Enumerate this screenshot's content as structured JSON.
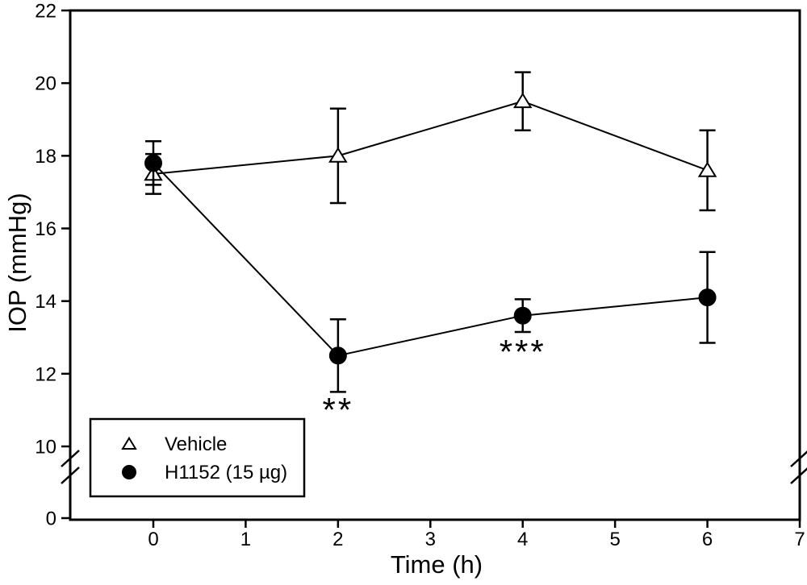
{
  "figure": {
    "background": "#ffffff",
    "ink_color": "#000000"
  },
  "chart_data": {
    "type": "line",
    "title": "",
    "xlabel": "Time (h)",
    "ylabel": "IOP (mmHg)",
    "x_ticks": [
      0,
      1,
      2,
      3,
      4,
      5,
      6,
      7
    ],
    "y_ticks": [
      0,
      10,
      12,
      14,
      16,
      18,
      20,
      22
    ],
    "xlim": [
      -0.9,
      7
    ],
    "ylim": [
      0,
      22
    ],
    "y_axis_break": {
      "between": [
        0,
        10
      ]
    },
    "grid": false,
    "x": [
      0,
      2,
      4,
      6
    ],
    "series": [
      {
        "name": "Vehicle",
        "marker": "open-triangle",
        "values": [
          17.5,
          18.0,
          19.5,
          17.6
        ],
        "error_bars": [
          0.55,
          1.3,
          0.8,
          1.1
        ]
      },
      {
        "name": "H1152 (15 µg)",
        "marker": "filled-circle",
        "values": [
          17.8,
          12.5,
          13.6,
          14.1
        ],
        "error_bars": [
          0.6,
          1.0,
          0.45,
          1.25
        ]
      }
    ],
    "annotations": [
      {
        "text": "**",
        "x": 2,
        "y": 11.0
      },
      {
        "text": "***",
        "x": 4,
        "y": 12.6
      }
    ],
    "legend": {
      "position": "lower-left",
      "entries": [
        "Vehicle",
        "H1152 (15 µg)"
      ]
    }
  }
}
